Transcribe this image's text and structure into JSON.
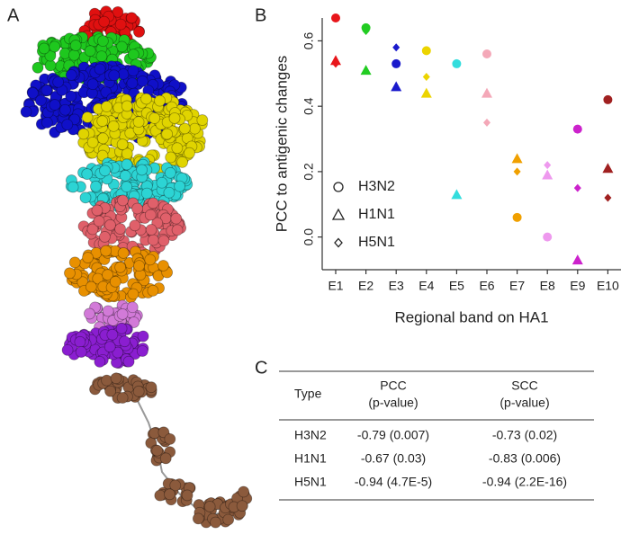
{
  "panels": [
    "A",
    "B",
    "C"
  ],
  "chart_data": {
    "type": "scatter",
    "x_label": "Regional band on HA1",
    "y_label": "PCC to antigenic changes",
    "categories": [
      "E1",
      "E2",
      "E3",
      "E4",
      "E5",
      "E6",
      "E7",
      "E8",
      "E9",
      "E10"
    ],
    "colors": [
      "#e8161b",
      "#22cc22",
      "#1a1acc",
      "#ecd400",
      "#33dddd",
      "#f4a8b8",
      "#f0a000",
      "#ee99ee",
      "#cc22cc",
      "#a02020"
    ],
    "series": [
      {
        "name": "H3N2",
        "marker": "circle",
        "values": [
          0.67,
          0.64,
          0.53,
          0.57,
          0.53,
          0.56,
          0.06,
          0.0,
          0.33,
          0.42
        ]
      },
      {
        "name": "H1N1",
        "marker": "triangle",
        "values": [
          0.54,
          0.51,
          0.46,
          0.44,
          0.13,
          0.44,
          0.24,
          0.19,
          -0.07,
          0.21
        ]
      },
      {
        "name": "H5N1",
        "marker": "diamond",
        "values": [
          0.53,
          0.63,
          0.58,
          0.49,
          0.53,
          0.35,
          0.2,
          0.22,
          0.15,
          0.12
        ]
      }
    ],
    "ylim": [
      -0.1,
      0.67
    ],
    "yticks": [
      {
        "value": 0,
        "label": "0.0"
      },
      0.2,
      0.4,
      0.6
    ],
    "legend": "lower left"
  },
  "table": {
    "header": [
      "Type",
      [
        "PCC",
        "(p-value)"
      ],
      [
        "SCC",
        "(p-value)"
      ]
    ],
    "rows": [
      [
        "H3N2",
        "-0.79 (0.007)",
        "-0.73 (0.02)"
      ],
      [
        "H1N1",
        "-0.67 (0.03)",
        "-0.83 (0.006)"
      ],
      [
        "H5N1",
        "-0.94 (4.7E-5)",
        "-0.94 (2.2E-16)"
      ]
    ]
  }
}
